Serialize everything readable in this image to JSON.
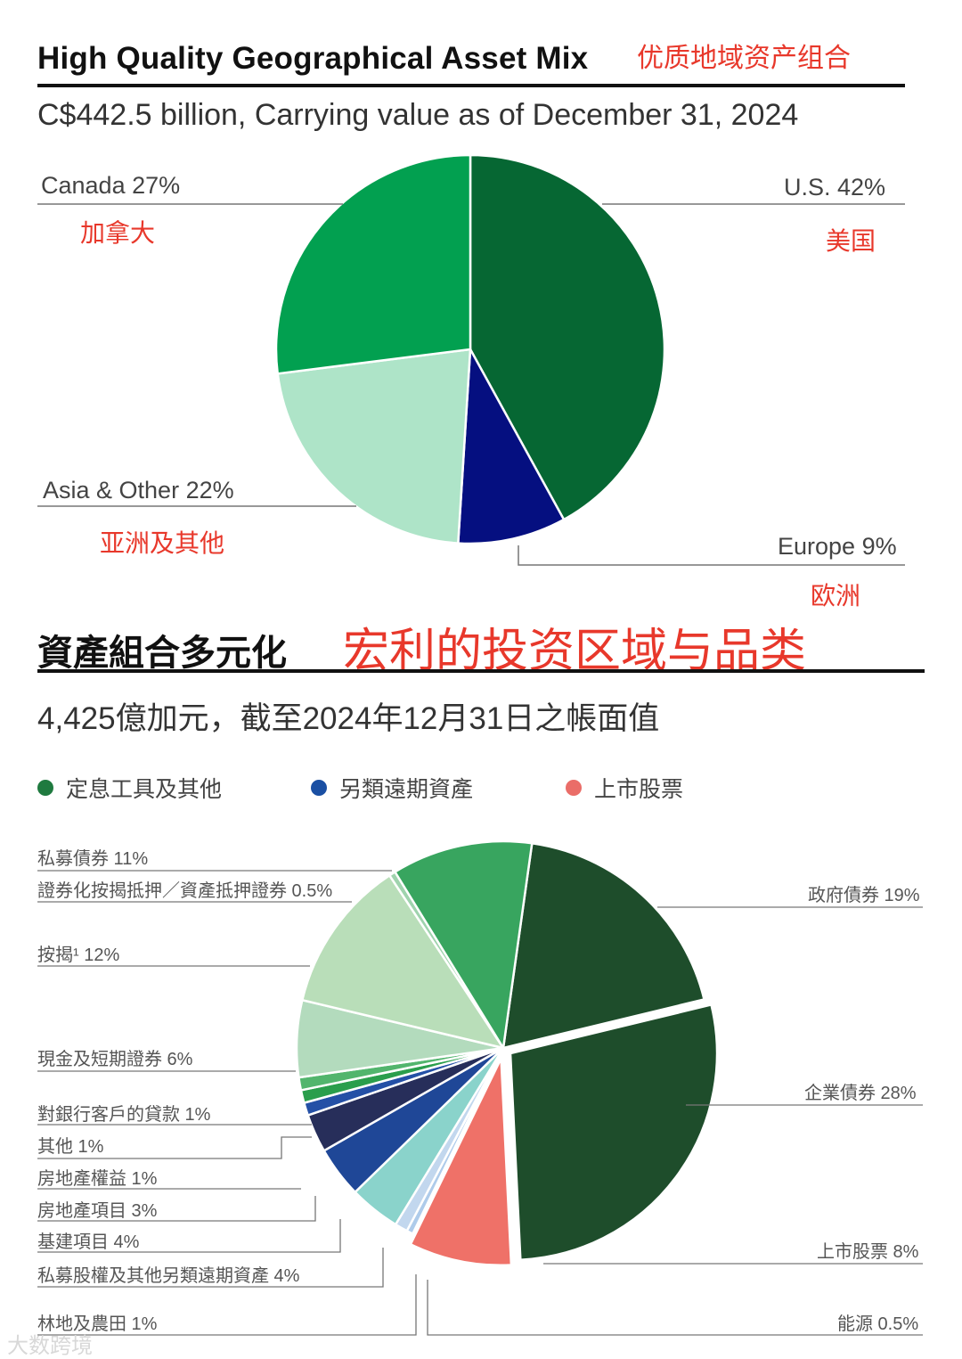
{
  "top": {
    "title_en": "High Quality Geographical Asset Mix",
    "title_cn": "优质地域资产组合",
    "subtitle": "C$442.5 billion, Carrying value as of December 31, 2024"
  },
  "bottom": {
    "title_cn": "資產組合多元化",
    "title_cn_red": "宏利的投资区域与品类",
    "subtitle": "4,425億加元，截至2024年12月31日之帳面值",
    "legend": [
      {
        "label": "定息工具及其他",
        "color": "#1f7a3f"
      },
      {
        "label": "另類遠期資產",
        "color": "#1a4fa3"
      },
      {
        "label": "上市股票",
        "color": "#ea6d68"
      }
    ]
  },
  "watermark": "大数跨境",
  "chart_data": [
    {
      "type": "pie",
      "title": "High Quality Geographical Asset Mix",
      "slices": [
        {
          "label": "U.S.  42%",
          "label_cn": "美国",
          "value": 42,
          "color": "#066733"
        },
        {
          "label": "Europe 9%",
          "label_cn": "欧洲",
          "value": 9,
          "color": "#050f80"
        },
        {
          "label": "Asia & Other 22%",
          "label_cn": "亚洲及其他",
          "value": 22,
          "color": "#aee4c8"
        },
        {
          "label": "Canada 27%",
          "label_cn": "加拿大",
          "value": 27,
          "color": "#02a050"
        }
      ]
    },
    {
      "type": "pie",
      "title": "資產組合多元化",
      "slices": [
        {
          "label": "政府債券 19%",
          "value": 19,
          "color": "#1e4d2b"
        },
        {
          "label": "企業債券 28%",
          "value": 28,
          "color": "#1e4d2b"
        },
        {
          "label": "上市股票 8%",
          "value": 8,
          "color": "#ef7168"
        },
        {
          "label": "能源 0.5%",
          "value": 0.5,
          "color": "#aecbea"
        },
        {
          "label": "林地及農田 1%",
          "value": 1,
          "color": "#c2d7ee"
        },
        {
          "label": "私募股權及其他另類遠期資產 4%",
          "value": 4,
          "color": "#8ad3cb"
        },
        {
          "label": "基建項目 4%",
          "value": 4,
          "color": "#1f4797"
        },
        {
          "label": "房地產項目 3%",
          "value": 3,
          "color": "#272e5a"
        },
        {
          "label": "房地產權益 1%",
          "value": 1,
          "color": "#2450a6"
        },
        {
          "label": "其他 1%",
          "value": 1,
          "color": "#2a9e4c"
        },
        {
          "label": "對銀行客戶的貸款 1%",
          "value": 1,
          "color": "#52b56d"
        },
        {
          "label": "現金及短期證券 6%",
          "value": 6,
          "color": "#b3dbbd"
        },
        {
          "label": "按揭¹ 12%",
          "value": 12,
          "color": "#b9deb9"
        },
        {
          "label": "證券化按揭抵押／資產抵押證券 0.5%",
          "value": 0.5,
          "color": "#9fd3ad"
        },
        {
          "label": "私募債券 11%",
          "value": 11,
          "color": "#38a55f"
        }
      ]
    }
  ]
}
